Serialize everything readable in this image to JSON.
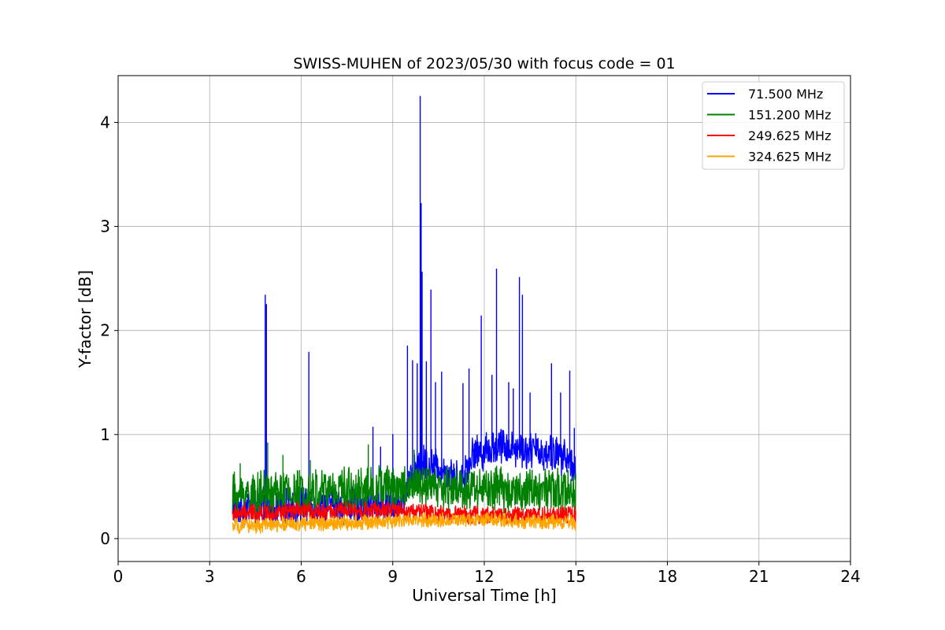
{
  "chart_data": {
    "type": "line",
    "title": "SWISS-MUHEN of 2023/05/30 with focus code = 01",
    "xlabel": "Universal Time [h]",
    "ylabel": "Y-factor [dB]",
    "xlim": [
      0,
      24
    ],
    "ylim": [
      -0.22,
      4.45
    ],
    "xticks": [
      0,
      3,
      6,
      9,
      12,
      15,
      18,
      21,
      24
    ],
    "xtick_labels": [
      "0",
      "3",
      "6",
      "9",
      "12",
      "15",
      "18",
      "21",
      "24"
    ],
    "yticks": [
      0,
      1,
      2,
      3,
      4
    ],
    "ytick_labels": [
      "0",
      "1",
      "2",
      "3",
      "4"
    ],
    "grid": true,
    "legend_position": "top-right",
    "series": [
      {
        "name": " 71.500 MHz",
        "color": "#0000ff",
        "x_range": [
          3.75,
          15.0
        ],
        "baseline": [
          [
            3.75,
            0.3
          ],
          [
            9.3,
            0.33
          ],
          [
            9.5,
            0.55
          ],
          [
            10.0,
            0.72
          ],
          [
            10.5,
            0.7
          ],
          [
            11.2,
            0.55
          ],
          [
            11.6,
            0.8
          ],
          [
            12.5,
            0.9
          ],
          [
            13.5,
            0.85
          ],
          [
            14.5,
            0.8
          ],
          [
            15.0,
            0.7
          ]
        ],
        "amplitude": 0.2,
        "spikes": [
          [
            4.82,
            2.34
          ],
          [
            4.86,
            2.25
          ],
          [
            6.25,
            1.79
          ],
          [
            8.35,
            1.07
          ],
          [
            8.6,
            0.88
          ],
          [
            9.0,
            1.0
          ],
          [
            9.48,
            1.85
          ],
          [
            9.65,
            1.71
          ],
          [
            9.8,
            1.68
          ],
          [
            9.9,
            4.25
          ],
          [
            9.93,
            3.22
          ],
          [
            9.96,
            2.56
          ],
          [
            10.1,
            1.7
          ],
          [
            10.25,
            2.39
          ],
          [
            10.4,
            1.5
          ],
          [
            10.6,
            1.6
          ],
          [
            11.3,
            1.49
          ],
          [
            11.5,
            1.63
          ],
          [
            11.9,
            2.14
          ],
          [
            12.25,
            1.57
          ],
          [
            12.4,
            2.59
          ],
          [
            12.8,
            1.5
          ],
          [
            12.95,
            1.44
          ],
          [
            13.15,
            2.51
          ],
          [
            13.25,
            2.34
          ],
          [
            13.5,
            1.4
          ],
          [
            14.2,
            1.68
          ],
          [
            14.5,
            1.4
          ],
          [
            14.8,
            1.61
          ],
          [
            14.95,
            1.06
          ]
        ]
      },
      {
        "name": "151.200 MHz",
        "color": "#008000",
        "x_range": [
          3.75,
          15.0
        ],
        "baseline": [
          [
            3.75,
            0.42
          ],
          [
            6.0,
            0.45
          ],
          [
            9.0,
            0.5
          ],
          [
            12.0,
            0.48
          ],
          [
            15.0,
            0.45
          ]
        ],
        "amplitude": 0.24,
        "spikes": [
          [
            4.0,
            0.72
          ],
          [
            4.9,
            0.92
          ],
          [
            5.4,
            0.8
          ],
          [
            6.3,
            0.75
          ],
          [
            8.2,
            0.9
          ],
          [
            9.7,
            0.85
          ]
        ]
      },
      {
        "name": "249.625 MHz",
        "color": "#ff0000",
        "x_range": [
          3.75,
          15.0
        ],
        "baseline": [
          [
            3.75,
            0.24
          ],
          [
            6.0,
            0.26
          ],
          [
            9.0,
            0.27
          ],
          [
            12.0,
            0.22
          ],
          [
            15.0,
            0.23
          ]
        ],
        "amplitude": 0.1,
        "spikes": []
      },
      {
        "name": "324.625 MHz",
        "color": "#ffa500",
        "x_range": [
          3.75,
          15.0
        ],
        "baseline": [
          [
            3.75,
            0.12
          ],
          [
            6.0,
            0.14
          ],
          [
            9.0,
            0.17
          ],
          [
            12.0,
            0.18
          ],
          [
            15.0,
            0.15
          ]
        ],
        "amplitude": 0.08,
        "spikes": []
      }
    ]
  }
}
